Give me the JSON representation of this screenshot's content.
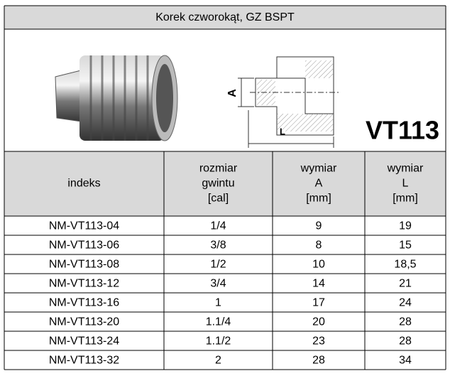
{
  "header": {
    "title": "Korek czworokąt, GZ BSPT",
    "code": "VT113",
    "drawing_labels": [
      "A",
      "L"
    ]
  },
  "table": {
    "columns": [
      {
        "lines": [
          "indeks"
        ]
      },
      {
        "lines": [
          "rozmiar",
          "gwintu",
          "[cal]"
        ]
      },
      {
        "lines": [
          "wymiar",
          "A",
          "[mm]"
        ]
      },
      {
        "lines": [
          "wymiar",
          "L",
          "[mm]"
        ]
      }
    ],
    "rows": [
      [
        "NM-VT113-04",
        "1/4",
        "9",
        "19"
      ],
      [
        "NM-VT113-06",
        "3/8",
        "8",
        "15"
      ],
      [
        "NM-VT113-08",
        "1/2",
        "10",
        "18,5"
      ],
      [
        "NM-VT113-12",
        "3/4",
        "14",
        "21"
      ],
      [
        "NM-VT113-16",
        "1",
        "17",
        "24"
      ],
      [
        "NM-VT113-20",
        "1.1/4",
        "20",
        "28"
      ],
      [
        "NM-VT113-24",
        "1.1/2",
        "23",
        "28"
      ],
      [
        "NM-VT113-32",
        "2",
        "28",
        "34"
      ]
    ]
  }
}
